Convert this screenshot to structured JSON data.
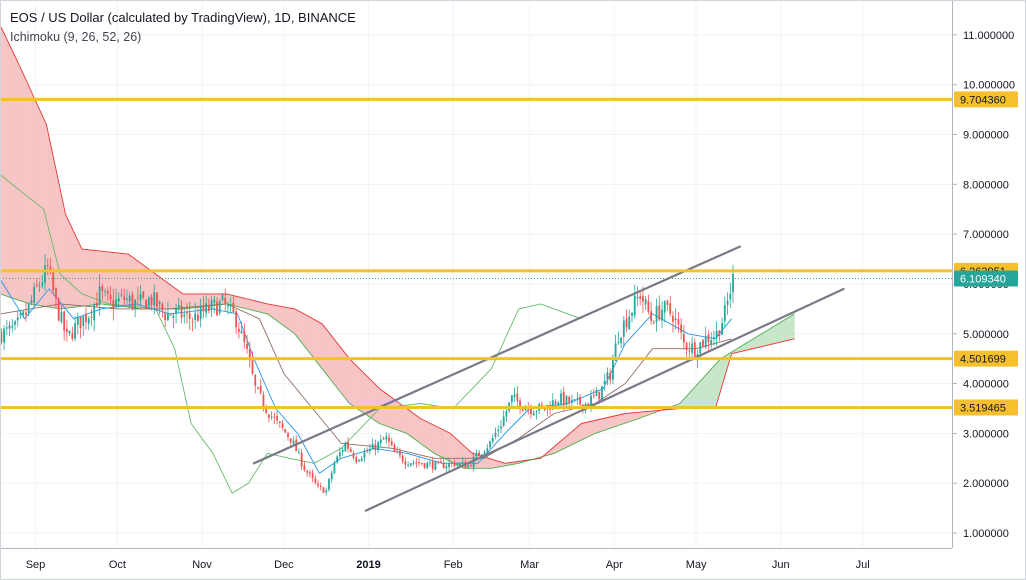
{
  "header": {
    "title": "EOS / US Dollar (calculated by TradingView), 1D, BINANCE",
    "indicator": "Ichimoku (9, 26, 52, 26)"
  },
  "colors": {
    "up": "#26a69a",
    "down": "#ef5350",
    "level": "#f5c02c",
    "trend": "#787b86",
    "price_badge": "#26a69a",
    "cloud_red": "#f7c5c5",
    "cloud_green": "#c8e6c9",
    "senkou_a": "#4caf50",
    "senkou_b": "#e53935",
    "chikou": "#66bb6a",
    "tenkan": "#2196f3",
    "kijun": "#8d6e63"
  },
  "chart_data": {
    "type": "candlestick",
    "title": "EOS / US Dollar (calculated by TradingView), 1D, BINANCE",
    "indicator": "Ichimoku (9, 26, 52, 26)",
    "x_ticks": [
      "Sep",
      "Oct",
      "Nov",
      "Dec",
      "2019",
      "Feb",
      "Mar",
      "Apr",
      "May",
      "Jun",
      "Jul"
    ],
    "y_ticks": [
      "1.000000",
      "2.000000",
      "3.000000",
      "4.000000",
      "5.000000",
      "6.000000",
      "7.000000",
      "8.000000",
      "9.000000",
      "10.000000",
      "11.000000"
    ],
    "ylim": [
      0.7,
      11.7
    ],
    "horizontal_levels": [
      {
        "label": "9.704360",
        "value": 9.70436
      },
      {
        "label": "6.263951",
        "value": 6.263951
      },
      {
        "label": "4.501699",
        "value": 4.501699
      },
      {
        "label": "3.519465",
        "value": 3.519465
      }
    ],
    "current_price": {
      "label": "6.109340",
      "value": 6.10934
    },
    "trendlines": [
      {
        "from": [
          "2018-11-20",
          2.4
        ],
        "to": [
          "2019-05-17",
          6.75
        ]
      },
      {
        "from": [
          "2018-12-31",
          1.45
        ],
        "to": [
          "2019-06-24",
          5.9
        ]
      }
    ],
    "price_path": [
      [
        "2018-08-19",
        5.0
      ],
      [
        "2018-08-24",
        5.1
      ],
      [
        "2018-08-28",
        5.4
      ],
      [
        "2018-09-01",
        5.9
      ],
      [
        "2018-09-05",
        6.3
      ],
      [
        "2018-09-08",
        5.6
      ],
      [
        "2018-09-12",
        4.9
      ],
      [
        "2018-09-16",
        5.2
      ],
      [
        "2018-09-20",
        5.4
      ],
      [
        "2018-09-24",
        5.8
      ],
      [
        "2018-09-28",
        5.6
      ],
      [
        "2018-10-03",
        5.7
      ],
      [
        "2018-10-08",
        5.6
      ],
      [
        "2018-10-13",
        5.7
      ],
      [
        "2018-10-18",
        5.4
      ],
      [
        "2018-10-23",
        5.4
      ],
      [
        "2018-10-28",
        5.3
      ],
      [
        "2018-11-03",
        5.5
      ],
      [
        "2018-11-08",
        5.6
      ],
      [
        "2018-11-13",
        5.3
      ],
      [
        "2018-11-17",
        4.6
      ],
      [
        "2018-11-20",
        3.9
      ],
      [
        "2018-11-24",
        3.5
      ],
      [
        "2018-11-28",
        3.2
      ],
      [
        "2018-12-03",
        2.9
      ],
      [
        "2018-12-08",
        2.3
      ],
      [
        "2018-12-13",
        1.9
      ],
      [
        "2018-12-16",
        1.85
      ],
      [
        "2018-12-19",
        2.4
      ],
      [
        "2018-12-23",
        2.8
      ],
      [
        "2018-12-27",
        2.5
      ],
      [
        "2019-01-02",
        2.7
      ],
      [
        "2019-01-07",
        2.9
      ],
      [
        "2019-01-10",
        2.6
      ],
      [
        "2019-01-14",
        2.45
      ],
      [
        "2019-01-20",
        2.4
      ],
      [
        "2019-01-26",
        2.35
      ],
      [
        "2019-02-01",
        2.4
      ],
      [
        "2019-02-06",
        2.35
      ],
      [
        "2019-02-10",
        2.6
      ],
      [
        "2019-02-14",
        2.8
      ],
      [
        "2019-02-18",
        3.2
      ],
      [
        "2019-02-22",
        3.7
      ],
      [
        "2019-02-25",
        3.6
      ],
      [
        "2019-03-01",
        3.5
      ],
      [
        "2019-03-06",
        3.5
      ],
      [
        "2019-03-11",
        3.7
      ],
      [
        "2019-03-16",
        3.6
      ],
      [
        "2019-03-21",
        3.6
      ],
      [
        "2019-03-26",
        3.8
      ],
      [
        "2019-03-30",
        4.2
      ],
      [
        "2019-04-02",
        5.0
      ],
      [
        "2019-04-06",
        5.4
      ],
      [
        "2019-04-10",
        5.8
      ],
      [
        "2019-04-14",
        5.3
      ],
      [
        "2019-04-18",
        5.5
      ],
      [
        "2019-04-22",
        5.4
      ],
      [
        "2019-04-26",
        4.8
      ],
      [
        "2019-04-30",
        4.7
      ],
      [
        "2019-05-04",
        4.9
      ],
      [
        "2019-05-08",
        5.0
      ],
      [
        "2019-05-11",
        5.4
      ],
      [
        "2019-05-14",
        6.1
      ]
    ],
    "senkou_a": [
      [
        "2018-08-19",
        5.8
      ],
      [
        "2018-08-30",
        5.6
      ],
      [
        "2018-09-10",
        5.5
      ],
      [
        "2018-09-25",
        5.6
      ],
      [
        "2018-10-10",
        5.5
      ],
      [
        "2018-10-25",
        5.5
      ],
      [
        "2018-11-10",
        5.6
      ],
      [
        "2018-11-25",
        5.4
      ],
      [
        "2018-12-05",
        5.0
      ],
      [
        "2018-12-15",
        4.3
      ],
      [
        "2018-12-25",
        3.6
      ],
      [
        "2019-01-05",
        3.2
      ],
      [
        "2019-01-15",
        3.0
      ],
      [
        "2019-01-25",
        2.6
      ],
      [
        "2019-02-05",
        2.3
      ],
      [
        "2019-02-15",
        2.3
      ],
      [
        "2019-02-25",
        2.4
      ],
      [
        "2019-03-10",
        2.6
      ],
      [
        "2019-03-25",
        3.0
      ],
      [
        "2019-04-10",
        3.3
      ],
      [
        "2019-04-25",
        3.6
      ],
      [
        "2019-05-10",
        4.5
      ],
      [
        "2019-05-25",
        5.0
      ],
      [
        "2019-06-06",
        5.4
      ]
    ],
    "senkou_b": [
      [
        "2018-08-19",
        11.2
      ],
      [
        "2018-08-26",
        10.4
      ],
      [
        "2018-09-05",
        9.2
      ],
      [
        "2018-09-12",
        7.4
      ],
      [
        "2018-09-18",
        6.7
      ],
      [
        "2018-10-05",
        6.6
      ],
      [
        "2018-10-15",
        6.2
      ],
      [
        "2018-10-25",
        5.8
      ],
      [
        "2018-11-10",
        5.8
      ],
      [
        "2018-11-25",
        5.6
      ],
      [
        "2018-12-05",
        5.5
      ],
      [
        "2018-12-15",
        5.2
      ],
      [
        "2018-12-25",
        4.5
      ],
      [
        "2019-01-05",
        3.9
      ],
      [
        "2019-01-20",
        3.3
      ],
      [
        "2019-01-31",
        3.0
      ],
      [
        "2019-02-08",
        2.6
      ],
      [
        "2019-02-20",
        2.4
      ],
      [
        "2019-03-05",
        2.5
      ],
      [
        "2019-03-20",
        3.2
      ],
      [
        "2019-04-05",
        3.4
      ],
      [
        "2019-04-25",
        3.5
      ],
      [
        "2019-05-08",
        3.5
      ],
      [
        "2019-05-14",
        4.6
      ],
      [
        "2019-06-06",
        4.9
      ]
    ],
    "tenkan_sen": [
      [
        "2018-08-19",
        6.1
      ],
      [
        "2018-08-28",
        5.3
      ],
      [
        "2018-09-06",
        5.9
      ],
      [
        "2018-09-15",
        5.3
      ],
      [
        "2018-09-25",
        5.5
      ],
      [
        "2018-10-08",
        5.6
      ],
      [
        "2018-10-20",
        5.4
      ],
      [
        "2018-11-05",
        5.5
      ],
      [
        "2018-11-14",
        5.4
      ],
      [
        "2018-11-20",
        4.5
      ],
      [
        "2018-11-28",
        3.5
      ],
      [
        "2018-12-06",
        3.0
      ],
      [
        "2018-12-14",
        2.2
      ],
      [
        "2018-12-22",
        2.5
      ],
      [
        "2019-01-03",
        2.7
      ],
      [
        "2019-01-15",
        2.6
      ],
      [
        "2019-01-28",
        2.4
      ],
      [
        "2019-02-10",
        2.4
      ],
      [
        "2019-02-20",
        3.0
      ],
      [
        "2019-03-01",
        3.5
      ],
      [
        "2019-03-15",
        3.6
      ],
      [
        "2019-03-28",
        3.9
      ],
      [
        "2019-04-05",
        4.8
      ],
      [
        "2019-04-15",
        5.4
      ],
      [
        "2019-04-28",
        5.0
      ],
      [
        "2019-05-08",
        4.9
      ],
      [
        "2019-05-14",
        5.3
      ]
    ],
    "kijun_sen": [
      [
        "2018-08-19",
        5.4
      ],
      [
        "2018-09-10",
        5.6
      ],
      [
        "2018-10-01",
        5.5
      ],
      [
        "2018-10-20",
        5.5
      ],
      [
        "2018-11-10",
        5.6
      ],
      [
        "2018-11-22",
        5.3
      ],
      [
        "2018-12-01",
        4.2
      ],
      [
        "2018-12-10",
        3.6
      ],
      [
        "2018-12-22",
        2.8
      ],
      [
        "2019-01-10",
        2.7
      ],
      [
        "2019-01-25",
        2.5
      ],
      [
        "2019-02-12",
        2.5
      ],
      [
        "2019-02-25",
        2.9
      ],
      [
        "2019-03-10",
        3.4
      ],
      [
        "2019-03-25",
        3.6
      ],
      [
        "2019-04-05",
        4.0
      ],
      [
        "2019-04-15",
        4.7
      ],
      [
        "2019-05-01",
        4.7
      ],
      [
        "2019-05-14",
        4.9
      ]
    ],
    "chikou_span": [
      [
        "2018-08-19",
        8.2
      ],
      [
        "2018-08-28",
        7.8
      ],
      [
        "2018-09-04",
        7.5
      ],
      [
        "2018-09-10",
        6.2
      ],
      [
        "2018-09-18",
        5.8
      ],
      [
        "2018-09-28",
        5.6
      ],
      [
        "2018-10-15",
        5.5
      ],
      [
        "2018-10-22",
        4.7
      ],
      [
        "2018-10-28",
        3.2
      ],
      [
        "2018-11-05",
        2.6
      ],
      [
        "2018-11-12",
        1.8
      ],
      [
        "2018-11-18",
        2.0
      ],
      [
        "2018-11-25",
        2.6
      ],
      [
        "2018-12-03",
        2.5
      ],
      [
        "2018-12-12",
        2.4
      ],
      [
        "2018-12-22",
        2.7
      ],
      [
        "2019-01-05",
        3.5
      ],
      [
        "2019-01-20",
        3.6
      ],
      [
        "2019-02-01",
        3.5
      ],
      [
        "2019-02-15",
        4.3
      ],
      [
        "2019-02-25",
        5.5
      ],
      [
        "2019-03-05",
        5.6
      ],
      [
        "2019-03-15",
        5.4
      ],
      [
        "2019-03-20",
        5.3
      ]
    ]
  }
}
